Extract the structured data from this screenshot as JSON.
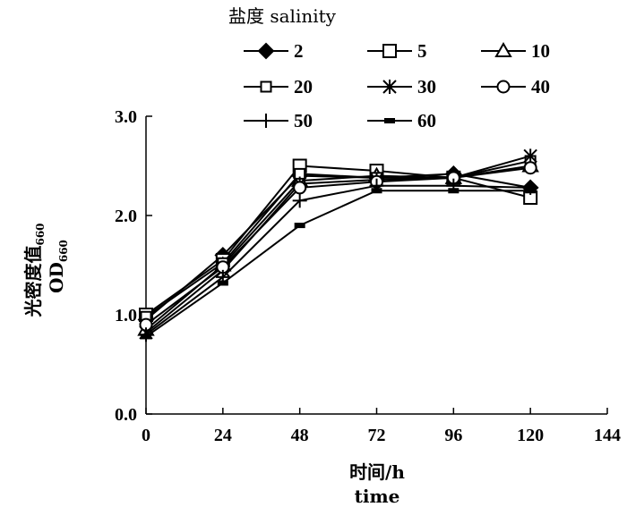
{
  "chart_data": {
    "type": "line",
    "legend_title": "盐度 salinity",
    "xlabel": "时间/h",
    "xlabel_en": "time",
    "ylabel_cn": "光密度值",
    "ylabel_cn_sub": "660",
    "ylabel_en": "OD",
    "ylabel_en_sub": "660",
    "x": [
      0,
      24,
      48,
      72,
      96,
      120
    ],
    "xlim": [
      0,
      144
    ],
    "ylim": [
      0.0,
      3.0
    ],
    "xticks": [
      "0",
      "24",
      "48",
      "72",
      "96",
      "120",
      "144"
    ],
    "yticks": [
      "0.0",
      "1.0",
      "2.0",
      "3.0"
    ],
    "legend_position": "top",
    "grid": false,
    "series": [
      {
        "name": "2",
        "marker": "diamond-filled",
        "values": [
          0.95,
          1.6,
          2.4,
          2.38,
          2.42,
          2.28
        ]
      },
      {
        "name": "5",
        "marker": "square-open",
        "values": [
          1.0,
          1.55,
          2.5,
          2.45,
          2.38,
          2.18
        ]
      },
      {
        "name": "10",
        "marker": "triangle-open",
        "values": [
          0.85,
          1.5,
          2.35,
          2.4,
          2.38,
          2.5
        ]
      },
      {
        "name": "20",
        "marker": "square-open-small",
        "values": [
          0.98,
          1.52,
          2.42,
          2.38,
          2.38,
          2.55
        ]
      },
      {
        "name": "30",
        "marker": "asterisk",
        "values": [
          0.82,
          1.45,
          2.32,
          2.36,
          2.38,
          2.6
        ]
      },
      {
        "name": "40",
        "marker": "circle-open",
        "values": [
          0.9,
          1.48,
          2.28,
          2.34,
          2.38,
          2.48
        ]
      },
      {
        "name": "50",
        "marker": "plus",
        "values": [
          0.8,
          1.38,
          2.15,
          2.3,
          2.3,
          2.28
        ]
      },
      {
        "name": "60",
        "marker": "dash-filled",
        "values": [
          0.78,
          1.32,
          1.9,
          2.25,
          2.25,
          2.25
        ]
      }
    ]
  }
}
